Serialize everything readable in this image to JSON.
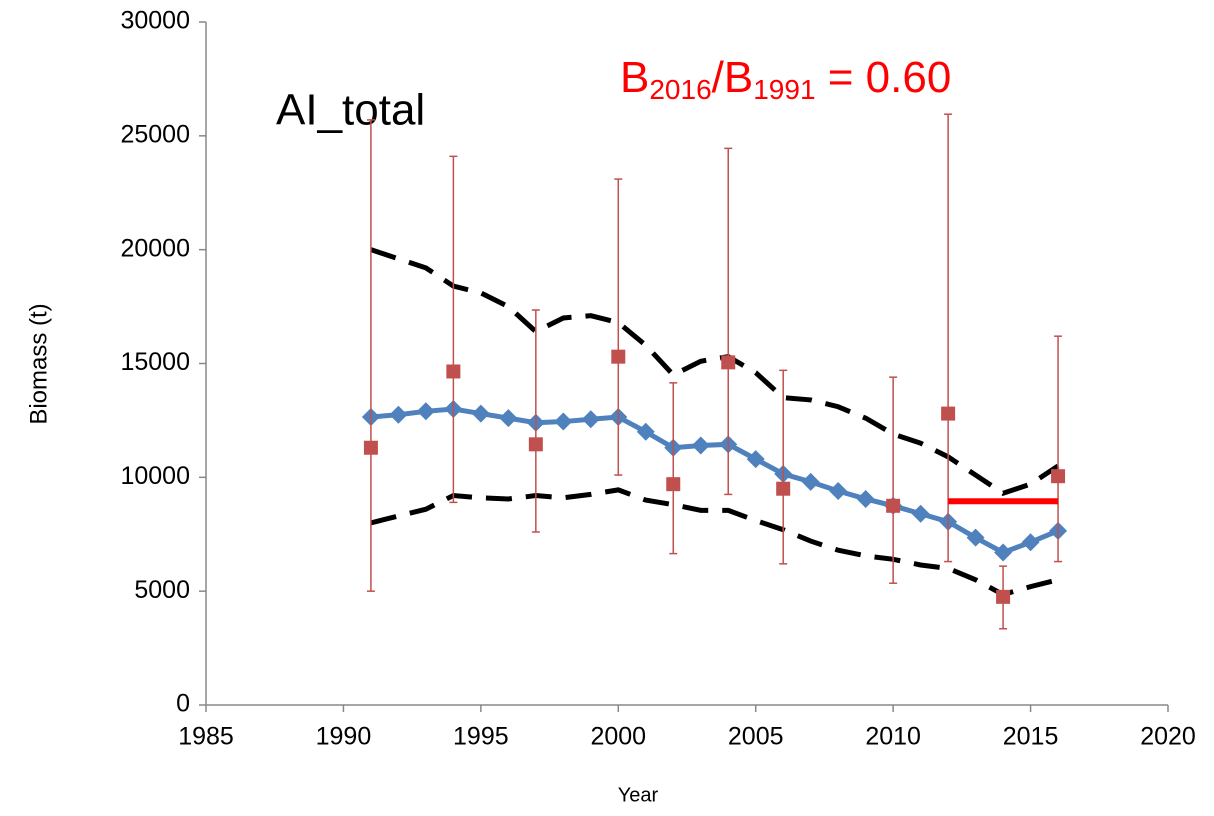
{
  "chart_data": {
    "type": "line",
    "label": "AI_total",
    "annotation": [
      "B",
      "2016",
      "/B",
      "1991",
      " = 0.60"
    ],
    "annotation_color": "#ff0000",
    "x_label": "Year",
    "y_label": "Biomass (t)",
    "xlim": [
      1985,
      2020
    ],
    "xticks": [
      1985,
      1990,
      1995,
      2000,
      2005,
      2010,
      2015,
      2020
    ],
    "ylim": [
      0,
      30000
    ],
    "yticks": [
      0,
      5000,
      10000,
      15000,
      20000,
      25000,
      30000
    ],
    "grid": false,
    "series": [
      {
        "color": "#000000",
        "dash": true,
        "marker": "none",
        "x": [
          1991,
          1992,
          1993,
          1994,
          1995,
          1996,
          1997,
          1998,
          1999,
          2000,
          2001,
          2002,
          2003,
          2004,
          2005,
          2006,
          2007,
          2008,
          2009,
          2010,
          2011,
          2012,
          2013,
          2014,
          2015,
          2016
        ],
        "values": [
          20000,
          19600,
          19200,
          18400,
          18100,
          17500,
          16400,
          17000,
          17100,
          16800,
          15800,
          14500,
          15100,
          15300,
          14600,
          13500,
          13400,
          13100,
          12600,
          11900,
          11500,
          10900,
          10100,
          9300,
          9700,
          10500
        ]
      },
      {
        "color": "#000000",
        "dash": true,
        "marker": "none",
        "x": [
          1991,
          1992,
          1993,
          1994,
          1995,
          1996,
          1997,
          1998,
          1999,
          2000,
          2001,
          2002,
          2003,
          2004,
          2005,
          2006,
          2007,
          2008,
          2009,
          2010,
          2011,
          2012,
          2013,
          2014,
          2015,
          2016
        ],
        "values": [
          8000,
          8300,
          8600,
          9200,
          9100,
          9050,
          9200,
          9100,
          9250,
          9450,
          9000,
          8800,
          8550,
          8550,
          8100,
          7700,
          7200,
          6800,
          6550,
          6400,
          6150,
          6000,
          5500,
          4850,
          5200,
          5500
        ]
      },
      {
        "color": "#4f81bd",
        "dash": false,
        "marker": "diamond",
        "x": [
          1991,
          1992,
          1993,
          1994,
          1995,
          1996,
          1997,
          1998,
          1999,
          2000,
          2001,
          2002,
          2003,
          2004,
          2005,
          2006,
          2007,
          2008,
          2009,
          2010,
          2011,
          2012,
          2013,
          2014,
          2015,
          2016
        ],
        "values": [
          12650,
          12750,
          12900,
          13000,
          12800,
          12600,
          12400,
          12450,
          12550,
          12650,
          12000,
          11300,
          11400,
          11450,
          10800,
          10150,
          9800,
          9400,
          9050,
          8750,
          8400,
          8050,
          7350,
          6700,
          7150,
          7650
        ]
      },
      {
        "color": "#c0504d",
        "dash": false,
        "marker": "square",
        "no_line": true,
        "x": [
          1991,
          1994,
          1997,
          2000,
          2002,
          2004,
          2006,
          2010,
          2012,
          2014,
          2016
        ],
        "values": [
          11300,
          14650,
          11450,
          15300,
          9700,
          15050,
          9500,
          8750,
          12800,
          4750,
          10050
        ],
        "upper": [
          25700,
          24100,
          17350,
          23100,
          14150,
          24450,
          14700,
          14400,
          25950,
          6100,
          16200
        ],
        "lower": [
          5000,
          8900,
          7600,
          10100,
          6650,
          9250,
          6200,
          5350,
          6300,
          3350,
          6300
        ]
      }
    ],
    "reference_line": {
      "x": [
        2012,
        2016
      ],
      "value": 8950,
      "color": "#ff0000"
    }
  }
}
